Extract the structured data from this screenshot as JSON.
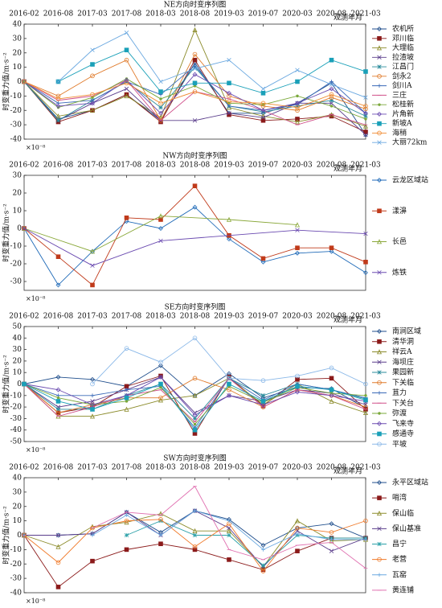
{
  "chart_data": [
    {
      "type": "line",
      "title": "NE方向时变序列图",
      "xlabel": "观测年月",
      "ylabel": "时变重力值/m·s⁻²",
      "unit": "×10⁻⁸",
      "categories": [
        "2016-02",
        "2016-08",
        "2017-03",
        "2017-08",
        "2018-03",
        "2018-08",
        "2019-03",
        "2019-07",
        "2020-03",
        "2020-08",
        "2021-03"
      ],
      "ylim": [
        -40,
        40
      ],
      "yticks": [
        -40,
        -30,
        -20,
        -10,
        0,
        10,
        20,
        30,
        40
      ],
      "series": [
        {
          "name": "农机所",
          "color": "#1f4e8c",
          "values": [
            0,
            -26,
            -20,
            -9,
            -27,
            13,
            -22,
            -22,
            -15,
            -1,
            -37
          ]
        },
        {
          "name": "邓川临",
          "color": "#8b1a1a",
          "values": [
            0,
            -28,
            -20,
            -9,
            -28,
            15,
            -23,
            -27,
            -26,
            -24,
            -35
          ]
        },
        {
          "name": "大理临",
          "color": "#8b8b2a",
          "values": [
            0,
            -24,
            -20,
            -10,
            -25,
            36,
            -18,
            -24,
            -28,
            -23,
            -31
          ]
        },
        {
          "name": "拉渣坡",
          "color": "#5a3d8b",
          "values": [
            0,
            -27,
            -15,
            -5,
            -27,
            -27,
            -22,
            -25,
            -15,
            -15,
            -37
          ]
        },
        {
          "name": "江昌门",
          "color": "#2a8b9b",
          "values": [
            0,
            -27,
            -13,
            0,
            -18,
            10,
            -17,
            -21,
            -17,
            -13,
            -24
          ]
        },
        {
          "name": "剑永2",
          "color": "#e07a2a",
          "values": [
            0,
            -10,
            4,
            15,
            -27,
            19,
            -10,
            -17,
            -20,
            -11,
            -19
          ]
        },
        {
          "name": "剑川A",
          "color": "#3a6ab8",
          "values": [
            0,
            -15,
            -13,
            0,
            -9,
            11,
            -17,
            -20,
            -16,
            0,
            -22
          ]
        },
        {
          "name": "三庄",
          "color": "#d0508a",
          "values": [
            0,
            -13,
            -10,
            1,
            -27,
            -7,
            -12,
            -20,
            -30,
            -23,
            -30
          ]
        },
        {
          "name": "松桂新",
          "color": "#7aa83a",
          "values": [
            0,
            -18,
            -11,
            2,
            -12,
            -3,
            -15,
            -16,
            -10,
            -17,
            -26
          ]
        },
        {
          "name": "片角新",
          "color": "#6a4ab0",
          "values": [
            0,
            -17,
            -15,
            1,
            -22,
            5,
            -8,
            -20,
            -15,
            -5,
            -22
          ]
        },
        {
          "name": "新坡A",
          "color": "#1aa0b8",
          "values": [
            null,
            0,
            12,
            22,
            -7,
            -1,
            -1,
            -8,
            0,
            15,
            7
          ]
        },
        {
          "name": "海稍",
          "color": "#f08a30",
          "values": [
            0,
            -12,
            -9,
            -1,
            -15,
            -7,
            -14,
            -15,
            -18,
            -9,
            -17
          ]
        },
        {
          "name": "大丽72km",
          "color": "#6aa8e0",
          "values": [
            null,
            0,
            22,
            34,
            0,
            9,
            15,
            -5,
            8,
            -2,
            -11
          ]
        }
      ]
    },
    {
      "type": "line",
      "title": "NW方向时变序列图",
      "xlabel": "观测年月",
      "ylabel": "时变重力值/m·s⁻²",
      "unit": "×10⁻⁸",
      "categories": [
        "2016-02",
        "2016-08",
        "2017-03",
        "2017-08",
        "2018-03",
        "2018-08",
        "2019-03",
        "2019-07",
        "2020-03",
        "2020-08",
        "2021-03"
      ],
      "ylim": [
        -35,
        30
      ],
      "yticks": [
        -30,
        -20,
        -10,
        0,
        10,
        20,
        30
      ],
      "series": [
        {
          "name": "云龙区域站",
          "color": "#1f6ab8",
          "values": [
            0,
            -32,
            -13,
            4,
            0,
            12,
            -6,
            -19,
            -14,
            -13,
            -25
          ]
        },
        {
          "name": "漾濞",
          "color": "#c03a1a",
          "values": [
            0,
            -16,
            -32,
            6,
            5,
            24,
            -4,
            -17,
            -11,
            -11,
            -19
          ]
        },
        {
          "name": "长邑",
          "color": "#8aa83a",
          "x": [
            "2016-02",
            "2017-03",
            "2018-03",
            "2019-03",
            "2020-03"
          ],
          "values": [
            0,
            -13,
            7,
            5,
            2
          ]
        },
        {
          "name": "炼铁",
          "color": "#6a4ab0",
          "x": [
            "2016-02",
            "2017-03",
            "2018-03",
            "2020-03",
            "2021-03"
          ],
          "values": [
            0,
            -21,
            -7,
            -1,
            -3
          ]
        }
      ]
    },
    {
      "type": "line",
      "title": "SE方向时变序列图",
      "xlabel": "观测年月",
      "ylabel": "时变重力值/m·s⁻²",
      "unit": "×10⁻⁸",
      "categories": [
        "2016-02",
        "2016-08",
        "2017-03",
        "2017-08",
        "2018-03",
        "2018-08",
        "2019-03",
        "2019-07",
        "2020-03",
        "2020-08",
        "2021-03"
      ],
      "ylim": [
        -50,
        50
      ],
      "yticks": [
        -50,
        -40,
        -30,
        -20,
        -10,
        0,
        10,
        20,
        30,
        40,
        50
      ],
      "series": [
        {
          "name": "南涧区域",
          "color": "#1f4e8c",
          "values": [
            0,
            6,
            4,
            -2,
            16,
            -10,
            9,
            -12,
            -3,
            -4,
            -21
          ]
        },
        {
          "name": "清华洞",
          "color": "#8b1a1a",
          "values": [
            0,
            -25,
            -20,
            -2,
            7,
            -43,
            6,
            -19,
            4,
            5,
            -22
          ]
        },
        {
          "name": "祥云A",
          "color": "#8b8b2a",
          "values": [
            0,
            -28,
            -28,
            -22,
            -14,
            -10,
            5,
            -18,
            0,
            -15,
            -25
          ]
        },
        {
          "name": "海坝庄",
          "color": "#5a3d8b",
          "values": [
            0,
            -20,
            -15,
            -5,
            6,
            -25,
            -10,
            -15,
            -5,
            -8,
            -18
          ]
        },
        {
          "name": "果园新",
          "color": "#2a8b9b",
          "values": [
            0,
            -22,
            -22,
            -10,
            0,
            -30,
            5,
            -10,
            0,
            -5,
            -13
          ]
        },
        {
          "name": "下关临",
          "color": "#e07a2a",
          "values": [
            0,
            -25,
            -18,
            -12,
            -12,
            5,
            -5,
            -20,
            -5,
            -10,
            -20
          ]
        },
        {
          "name": "苴力",
          "color": "#3a6ab8",
          "values": [
            0,
            -10,
            -10,
            -5,
            -2,
            -38,
            5,
            -14,
            0,
            -5,
            -12
          ]
        },
        {
          "name": "下关台",
          "color": "#d0508a",
          "values": [
            0,
            -28,
            -20,
            -10,
            -5,
            -33,
            5,
            -20,
            -5,
            -10,
            -22
          ]
        },
        {
          "name": "弥渡",
          "color": "#7aa83a",
          "values": [
            0,
            -12,
            -18,
            -15,
            -3,
            -35,
            -2,
            -16,
            -3,
            -8,
            -10
          ]
        },
        {
          "name": "飞来寺",
          "color": "#6a4ab0",
          "values": [
            0,
            -5,
            -18,
            -10,
            6,
            -27,
            -10,
            -18,
            -7,
            -10,
            -15
          ]
        },
        {
          "name": "感通寺",
          "color": "#1aa0b8",
          "values": [
            0,
            -15,
            -22,
            -12,
            0,
            -40,
            0,
            -15,
            -2,
            -5,
            -14
          ]
        },
        {
          "name": "平坡",
          "color": "#8ab8e8",
          "values": [
            null,
            null,
            0,
            31,
            19,
            40,
            5,
            3,
            7,
            14,
            0
          ]
        }
      ]
    },
    {
      "type": "line",
      "title": "SW方向时变序列图",
      "xlabel": "观测年月",
      "ylabel": "时变重力值/m·s⁻²",
      "unit": "×10⁻⁸",
      "categories": [
        "2016-02",
        "2016-08",
        "2017-03",
        "2017-08",
        "2018-03",
        "2018-08",
        "2019-03",
        "2019-07",
        "2020-03",
        "2020-08",
        "2021-03"
      ],
      "ylim": [
        -40,
        40
      ],
      "yticks": [
        -40,
        -30,
        -20,
        -10,
        0,
        10,
        20,
        30,
        40
      ],
      "series": [
        {
          "name": "永平区域站",
          "color": "#1f4e8c",
          "values": [
            0,
            0,
            1,
            16,
            2,
            17,
            11,
            -7,
            5,
            8,
            -2
          ]
        },
        {
          "name": "哨湾",
          "color": "#8b1a1a",
          "values": [
            0,
            -36,
            -18,
            -10,
            -6,
            -10,
            -17,
            -24,
            -11,
            -2,
            -2
          ]
        },
        {
          "name": "保山临",
          "color": "#8b8b2a",
          "values": [
            0,
            -8,
            6,
            9,
            15,
            3,
            3,
            -22,
            10,
            -4,
            -3
          ]
        },
        {
          "name": "保山基准",
          "color": "#5a3d8b",
          "values": [
            0,
            0,
            1,
            16,
            0,
            17,
            5,
            -22,
            3,
            -11,
            -2
          ]
        },
        {
          "name": "昌宁",
          "color": "#2aa0a8",
          "values": [
            0,
            null,
            null,
            0,
            10,
            0,
            0,
            -21,
            0,
            -2,
            -2
          ]
        },
        {
          "name": "老营",
          "color": "#f07a2a",
          "values": [
            0,
            -19,
            5,
            10,
            11,
            -8,
            8,
            -25,
            5,
            2,
            10
          ]
        },
        {
          "name": "瓦窑",
          "color": "#6aa8e0",
          "values": [
            0,
            null,
            0,
            14,
            0,
            17,
            10,
            -10,
            1,
            -3,
            -3
          ]
        },
        {
          "name": "黄连铺",
          "color": "#e070b0",
          "values": [
            0,
            null,
            5,
            16,
            14,
            34,
            -10,
            -17,
            -7,
            -5,
            -23
          ]
        }
      ]
    }
  ]
}
